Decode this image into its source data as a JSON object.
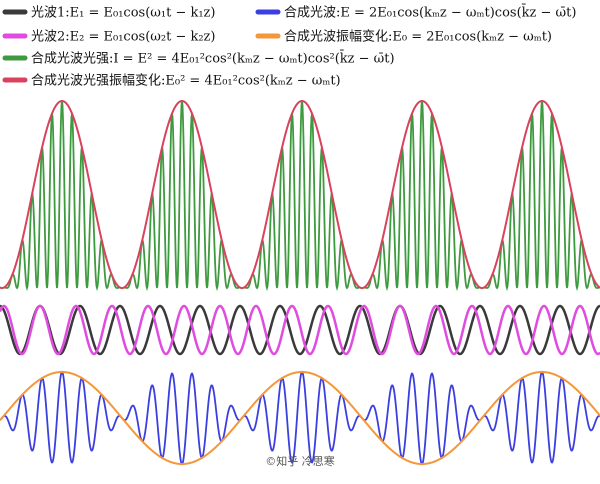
{
  "legend": {
    "items": [
      {
        "label": "光波1:E₁ = E₀₁cos(ω₁t − k₁z)",
        "color": "#3a3a3a"
      },
      {
        "label": "合成光波:E = 2E₀₁cos(kₘz − ωₘt)cos(k̄z − ω̄t)",
        "color": "#3b3fe0"
      },
      {
        "label": "光波2:E₂ = E₀₁cos(ω₂t − k₂z)",
        "color": "#e04ce0"
      },
      {
        "label": "合成光波振幅变化:E₀ = 2E₀₁cos(kₘz − ωₘt)",
        "color": "#f59638"
      },
      {
        "label": "合成光波光强:I = E² = 4E₀₁²cos²(kₘz − ωₘt)cos²(k̄z − ω̄t)",
        "color": "#3e9a3e"
      },
      {
        "label": "合成光波光强振幅变化:E₀² = 4E₀₁²cos²(kₘz − ωₘt)",
        "color": "#d9425e"
      }
    ]
  },
  "watermark": "©知乎 冷思寒"
}
